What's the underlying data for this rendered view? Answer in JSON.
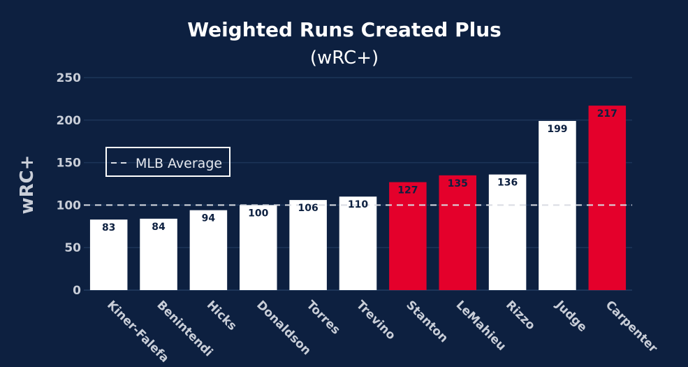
{
  "chart_data": {
    "type": "bar",
    "title": "Weighted Runs Created Plus",
    "subtitle": "(wRC+)",
    "xlabel": "",
    "ylabel": "wRC+",
    "ylim": [
      0,
      250
    ],
    "yticks": [
      0,
      50,
      100,
      150,
      200,
      250
    ],
    "grid": true,
    "categories": [
      "Kiner-Falefa",
      "Benintendi",
      "Hicks",
      "Donaldson",
      "Torres",
      "Trevino",
      "Stanton",
      "LeMahieu",
      "Rizzo",
      "Judge",
      "Carpenter"
    ],
    "values": [
      83,
      84,
      94,
      100,
      106,
      110,
      127,
      135,
      136,
      199,
      217
    ],
    "highlighted": [
      "Stanton",
      "LeMahieu",
      "Carpenter"
    ],
    "reference_line": {
      "label": "MLB Average",
      "value": 100,
      "style": "dashed"
    },
    "legend": {
      "placement": "left",
      "entries": [
        "MLB Average"
      ]
    },
    "colors": {
      "background": "#0d2040",
      "bar_default": "#ffffff",
      "bar_highlight": "#e4002b",
      "grid": "#1d3558",
      "reference_line": "#d9dce3",
      "tick_text": "#c9ced8",
      "data_label": "#0d2040"
    }
  }
}
